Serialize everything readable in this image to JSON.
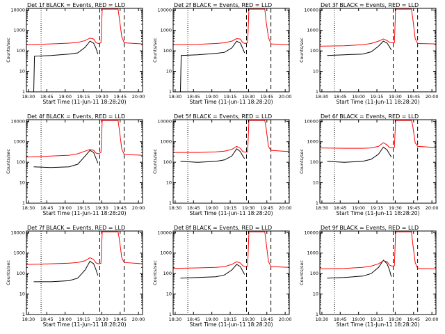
{
  "figure": {
    "x_tick_labels": [
      "18:30",
      "18:45",
      "19:00",
      "19:15",
      "19:30",
      "19:45",
      "20:00"
    ],
    "x_label": "Start Time (11-Jun-11 18:28:20)",
    "y_label": "Counts/sec",
    "y_tick_labels": [
      "1",
      "10",
      "100",
      "1000",
      "10000"
    ]
  },
  "colors": {
    "background": "#ffffff",
    "axes": "#000000",
    "events_series": "#000000",
    "lld_series": "#ff0000"
  },
  "chart_data": [
    {
      "type": "line",
      "title": "Det 1f BLACK = Events, RED = LLD",
      "xlabel": "Start Time (11-Jun-11 18:28:20)",
      "ylabel": "Counts/sec",
      "x_unit": "minutes since 18:28:20",
      "xlim": [
        0,
        95
      ],
      "ylim": [
        1,
        12000
      ],
      "yscale": "log",
      "vlines_dotted": [
        12
      ],
      "vlines_dashed": [
        60,
        80
      ],
      "events": {
        "x": [
          6,
          6.6,
          20,
          35,
          42,
          48,
          52,
          55,
          57,
          58.5
        ],
        "y": [
          1,
          55,
          60,
          70,
          80,
          150,
          300,
          240,
          130,
          70
        ]
      },
      "lld": {
        "x": [
          0,
          20,
          35,
          42,
          48,
          52,
          55,
          57,
          59,
          61,
          62,
          70,
          75,
          76,
          78,
          80,
          95
        ],
        "y": [
          200,
          220,
          240,
          260,
          320,
          420,
          380,
          250,
          230,
          250,
          11000,
          11000,
          11000,
          4000,
          500,
          250,
          220
        ]
      }
    },
    {
      "type": "line",
      "title": "Det 2f BLACK = Events, RED = LLD",
      "xlabel": "Start Time (11-Jun-11 18:28:20)",
      "ylabel": "Counts/sec",
      "x_unit": "minutes since 18:28:20",
      "xlim": [
        0,
        95
      ],
      "ylim": [
        1,
        12000
      ],
      "yscale": "log",
      "vlines_dotted": [
        12
      ],
      "vlines_dashed": [
        60,
        80
      ],
      "events": {
        "x": [
          6,
          6.6,
          20,
          35,
          42,
          48,
          52,
          55,
          57,
          58.5
        ],
        "y": [
          1,
          60,
          65,
          75,
          85,
          140,
          300,
          240,
          130,
          80
        ]
      },
      "lld": {
        "x": [
          0,
          20,
          35,
          42,
          48,
          52,
          55,
          57,
          59,
          61,
          62,
          70,
          75,
          76,
          78,
          80,
          95
        ],
        "y": [
          200,
          210,
          230,
          250,
          300,
          400,
          380,
          250,
          230,
          250,
          11000,
          11000,
          11000,
          3000,
          450,
          220,
          200
        ]
      }
    },
    {
      "type": "line",
      "title": "Det 3f BLACK = Events, RED = LLD",
      "xlabel": "Start Time (11-Jun-11 18:28:20)",
      "ylabel": "Counts/sec",
      "x_unit": "minutes since 18:28:20",
      "xlim": [
        0,
        95
      ],
      "ylim": [
        1,
        12000
      ],
      "yscale": "log",
      "vlines_dotted": [
        12
      ],
      "vlines_dashed": [
        60,
        80
      ],
      "events": {
        "x": [
          6,
          20,
          35,
          42,
          48,
          52,
          55,
          57,
          58.5
        ],
        "y": [
          60,
          65,
          70,
          90,
          170,
          300,
          240,
          160,
          110
        ]
      },
      "lld": {
        "x": [
          0,
          20,
          35,
          42,
          48,
          52,
          55,
          57,
          59,
          61,
          62,
          70,
          75,
          76,
          78,
          80,
          95
        ],
        "y": [
          170,
          180,
          200,
          230,
          300,
          380,
          320,
          260,
          250,
          250,
          11000,
          11000,
          11000,
          4000,
          400,
          230,
          220
        ]
      }
    },
    {
      "type": "line",
      "title": "Det 4f BLACK = Events, RED = LLD",
      "xlabel": "Start Time (11-Jun-11 18:28:20)",
      "ylabel": "Counts/sec",
      "x_unit": "minutes since 18:28:20",
      "xlim": [
        0,
        95
      ],
      "ylim": [
        1,
        12000
      ],
      "yscale": "log",
      "vlines_dotted": [
        12
      ],
      "vlines_dashed": [
        60,
        80
      ],
      "events": {
        "x": [
          6,
          20,
          35,
          42,
          48,
          52,
          55,
          57,
          58.5
        ],
        "y": [
          60,
          55,
          60,
          80,
          200,
          380,
          300,
          150,
          90
        ]
      },
      "lld": {
        "x": [
          0,
          20,
          35,
          42,
          48,
          52,
          55,
          57,
          59,
          61,
          62,
          70,
          75,
          76,
          78,
          80,
          95
        ],
        "y": [
          180,
          200,
          220,
          260,
          350,
          420,
          380,
          280,
          260,
          300,
          11000,
          11000,
          11000,
          4000,
          450,
          240,
          220
        ]
      }
    },
    {
      "type": "line",
      "title": "Det 5f BLACK = Events, RED = LLD",
      "xlabel": "Start Time (11-Jun-11 18:28:20)",
      "ylabel": "Counts/sec",
      "x_unit": "minutes since 18:28:20",
      "xlim": [
        0,
        95
      ],
      "ylim": [
        1,
        12000
      ],
      "yscale": "log",
      "vlines_dotted": [
        12
      ],
      "vlines_dashed": [
        60,
        80
      ],
      "events": {
        "x": [
          6,
          20,
          35,
          42,
          48,
          52,
          55,
          57,
          58.5
        ],
        "y": [
          110,
          100,
          110,
          130,
          200,
          450,
          330,
          200,
          150
        ]
      },
      "lld": {
        "x": [
          0,
          20,
          35,
          42,
          48,
          52,
          55,
          57,
          59,
          61,
          62,
          70,
          75,
          76,
          78,
          80,
          95
        ],
        "y": [
          300,
          300,
          320,
          350,
          420,
          600,
          480,
          330,
          310,
          320,
          11000,
          11000,
          11000,
          5000,
          600,
          380,
          330
        ]
      }
    },
    {
      "type": "line",
      "title": "Det 6f BLACK = Events, RED = LLD",
      "xlabel": "Start Time (11-Jun-11 18:28:20)",
      "ylabel": "Counts/sec",
      "x_unit": "minutes since 18:28:20",
      "xlim": [
        0,
        95
      ],
      "ylim": [
        1,
        12000
      ],
      "yscale": "log",
      "vlines_dotted": [
        12
      ],
      "vlines_dashed": [
        60,
        80
      ],
      "events": {
        "x": [
          6,
          20,
          35,
          42,
          48,
          52,
          55,
          57,
          58.5
        ],
        "y": [
          110,
          100,
          110,
          140,
          250,
          550,
          400,
          250,
          180
        ]
      },
      "lld": {
        "x": [
          0,
          20,
          35,
          42,
          48,
          52,
          55,
          57,
          59,
          61,
          62,
          70,
          75,
          76,
          78,
          80,
          95
        ],
        "y": [
          500,
          480,
          480,
          500,
          600,
          900,
          700,
          520,
          500,
          520,
          11000,
          11000,
          11000,
          6000,
          900,
          600,
          520
        ]
      }
    },
    {
      "type": "line",
      "title": "Det 7f BLACK = Events, RED = LLD",
      "xlabel": "Start Time (11-Jun-11 18:28:20)",
      "ylabel": "Counts/sec",
      "x_unit": "minutes since 18:28:20",
      "xlim": [
        0,
        95
      ],
      "ylim": [
        1,
        12000
      ],
      "yscale": "log",
      "vlines_dotted": [
        12
      ],
      "vlines_dashed": [
        60,
        80
      ],
      "events": {
        "x": [
          6,
          20,
          35,
          42,
          48,
          52,
          55,
          57,
          58.5
        ],
        "y": [
          40,
          40,
          45,
          60,
          150,
          400,
          300,
          150,
          80
        ]
      },
      "lld": {
        "x": [
          0,
          20,
          35,
          42,
          48,
          52,
          55,
          57,
          59,
          61,
          62,
          70,
          75,
          76,
          78,
          80,
          95
        ],
        "y": [
          280,
          300,
          320,
          350,
          420,
          600,
          480,
          330,
          300,
          320,
          11000,
          11000,
          11000,
          5000,
          600,
          350,
          300
        ]
      }
    },
    {
      "type": "line",
      "title": "Det 8f BLACK = Events, RED = LLD",
      "xlabel": "Start Time (11-Jun-11 18:28:20)",
      "ylabel": "Counts/sec",
      "x_unit": "minutes since 18:28:20",
      "xlim": [
        0,
        95
      ],
      "ylim": [
        1,
        12000
      ],
      "yscale": "log",
      "vlines_dotted": [
        12
      ],
      "vlines_dashed": [
        60,
        80
      ],
      "events": {
        "x": [
          6,
          20,
          35,
          42,
          48,
          52,
          55,
          57,
          58.5
        ],
        "y": [
          60,
          65,
          70,
          85,
          150,
          280,
          220,
          130,
          90
        ]
      },
      "lld": {
        "x": [
          0,
          20,
          35,
          42,
          48,
          52,
          55,
          57,
          59,
          61,
          62,
          70,
          75,
          76,
          78,
          80,
          95
        ],
        "y": [
          180,
          190,
          200,
          220,
          280,
          380,
          330,
          240,
          220,
          230,
          11000,
          11000,
          11000,
          3500,
          400,
          220,
          200
        ]
      }
    },
    {
      "type": "line",
      "title": "Det 9f BLACK = Events, RED = LLD",
      "xlabel": "Start Time (11-Jun-11 18:28:20)",
      "ylabel": "Counts/sec",
      "x_unit": "minutes since 18:28:20",
      "xlim": [
        0,
        95
      ],
      "ylim": [
        1,
        12000
      ],
      "yscale": "log",
      "vlines_dotted": [
        12
      ],
      "vlines_dashed": [
        60,
        80
      ],
      "events": {
        "x": [
          6,
          20,
          35,
          42,
          48,
          52,
          55,
          57,
          58.5
        ],
        "y": [
          60,
          65,
          75,
          100,
          200,
          450,
          300,
          150,
          70
        ]
      },
      "lld": {
        "x": [
          0,
          20,
          35,
          42,
          48,
          52,
          55,
          57,
          59,
          61,
          62,
          70,
          75,
          76,
          78,
          80,
          95
        ],
        "y": [
          170,
          180,
          200,
          230,
          300,
          420,
          380,
          260,
          230,
          240,
          11000,
          11000,
          11000,
          3000,
          350,
          180,
          170
        ]
      }
    }
  ]
}
